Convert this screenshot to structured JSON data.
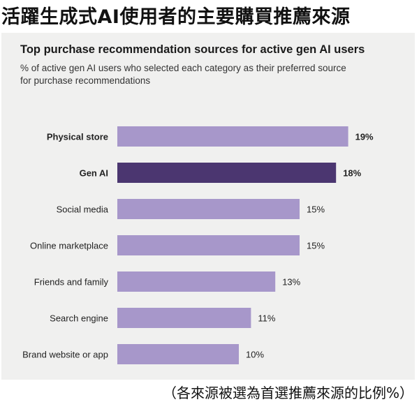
{
  "headline": "活躍生成式AI使用者的主要購買推薦來源",
  "caption": "（各來源被選為首選推薦來源的比例%）",
  "chart_data": {
    "type": "bar",
    "orientation": "horizontal",
    "title": "Top purchase recommendation sources for active gen AI users",
    "subtitle": "% of active gen AI users who selected each category as their preferred source for purchase recommendations",
    "categories": [
      "Physical store",
      "Gen AI",
      "Social media",
      "Online marketplace",
      "Friends and family",
      "Search engine",
      "Brand website or app"
    ],
    "values": [
      19,
      18,
      15,
      15,
      13,
      11,
      10
    ],
    "value_labels": [
      "19%",
      "18%",
      "15%",
      "15%",
      "13%",
      "11%",
      "10%"
    ],
    "bold_categories": [
      "Physical store",
      "Gen AI"
    ],
    "highlight_category": "Gen AI",
    "colors": {
      "bar": "#a797ca",
      "highlight": "#4b3670"
    },
    "grid": false,
    "legend": "none"
  }
}
